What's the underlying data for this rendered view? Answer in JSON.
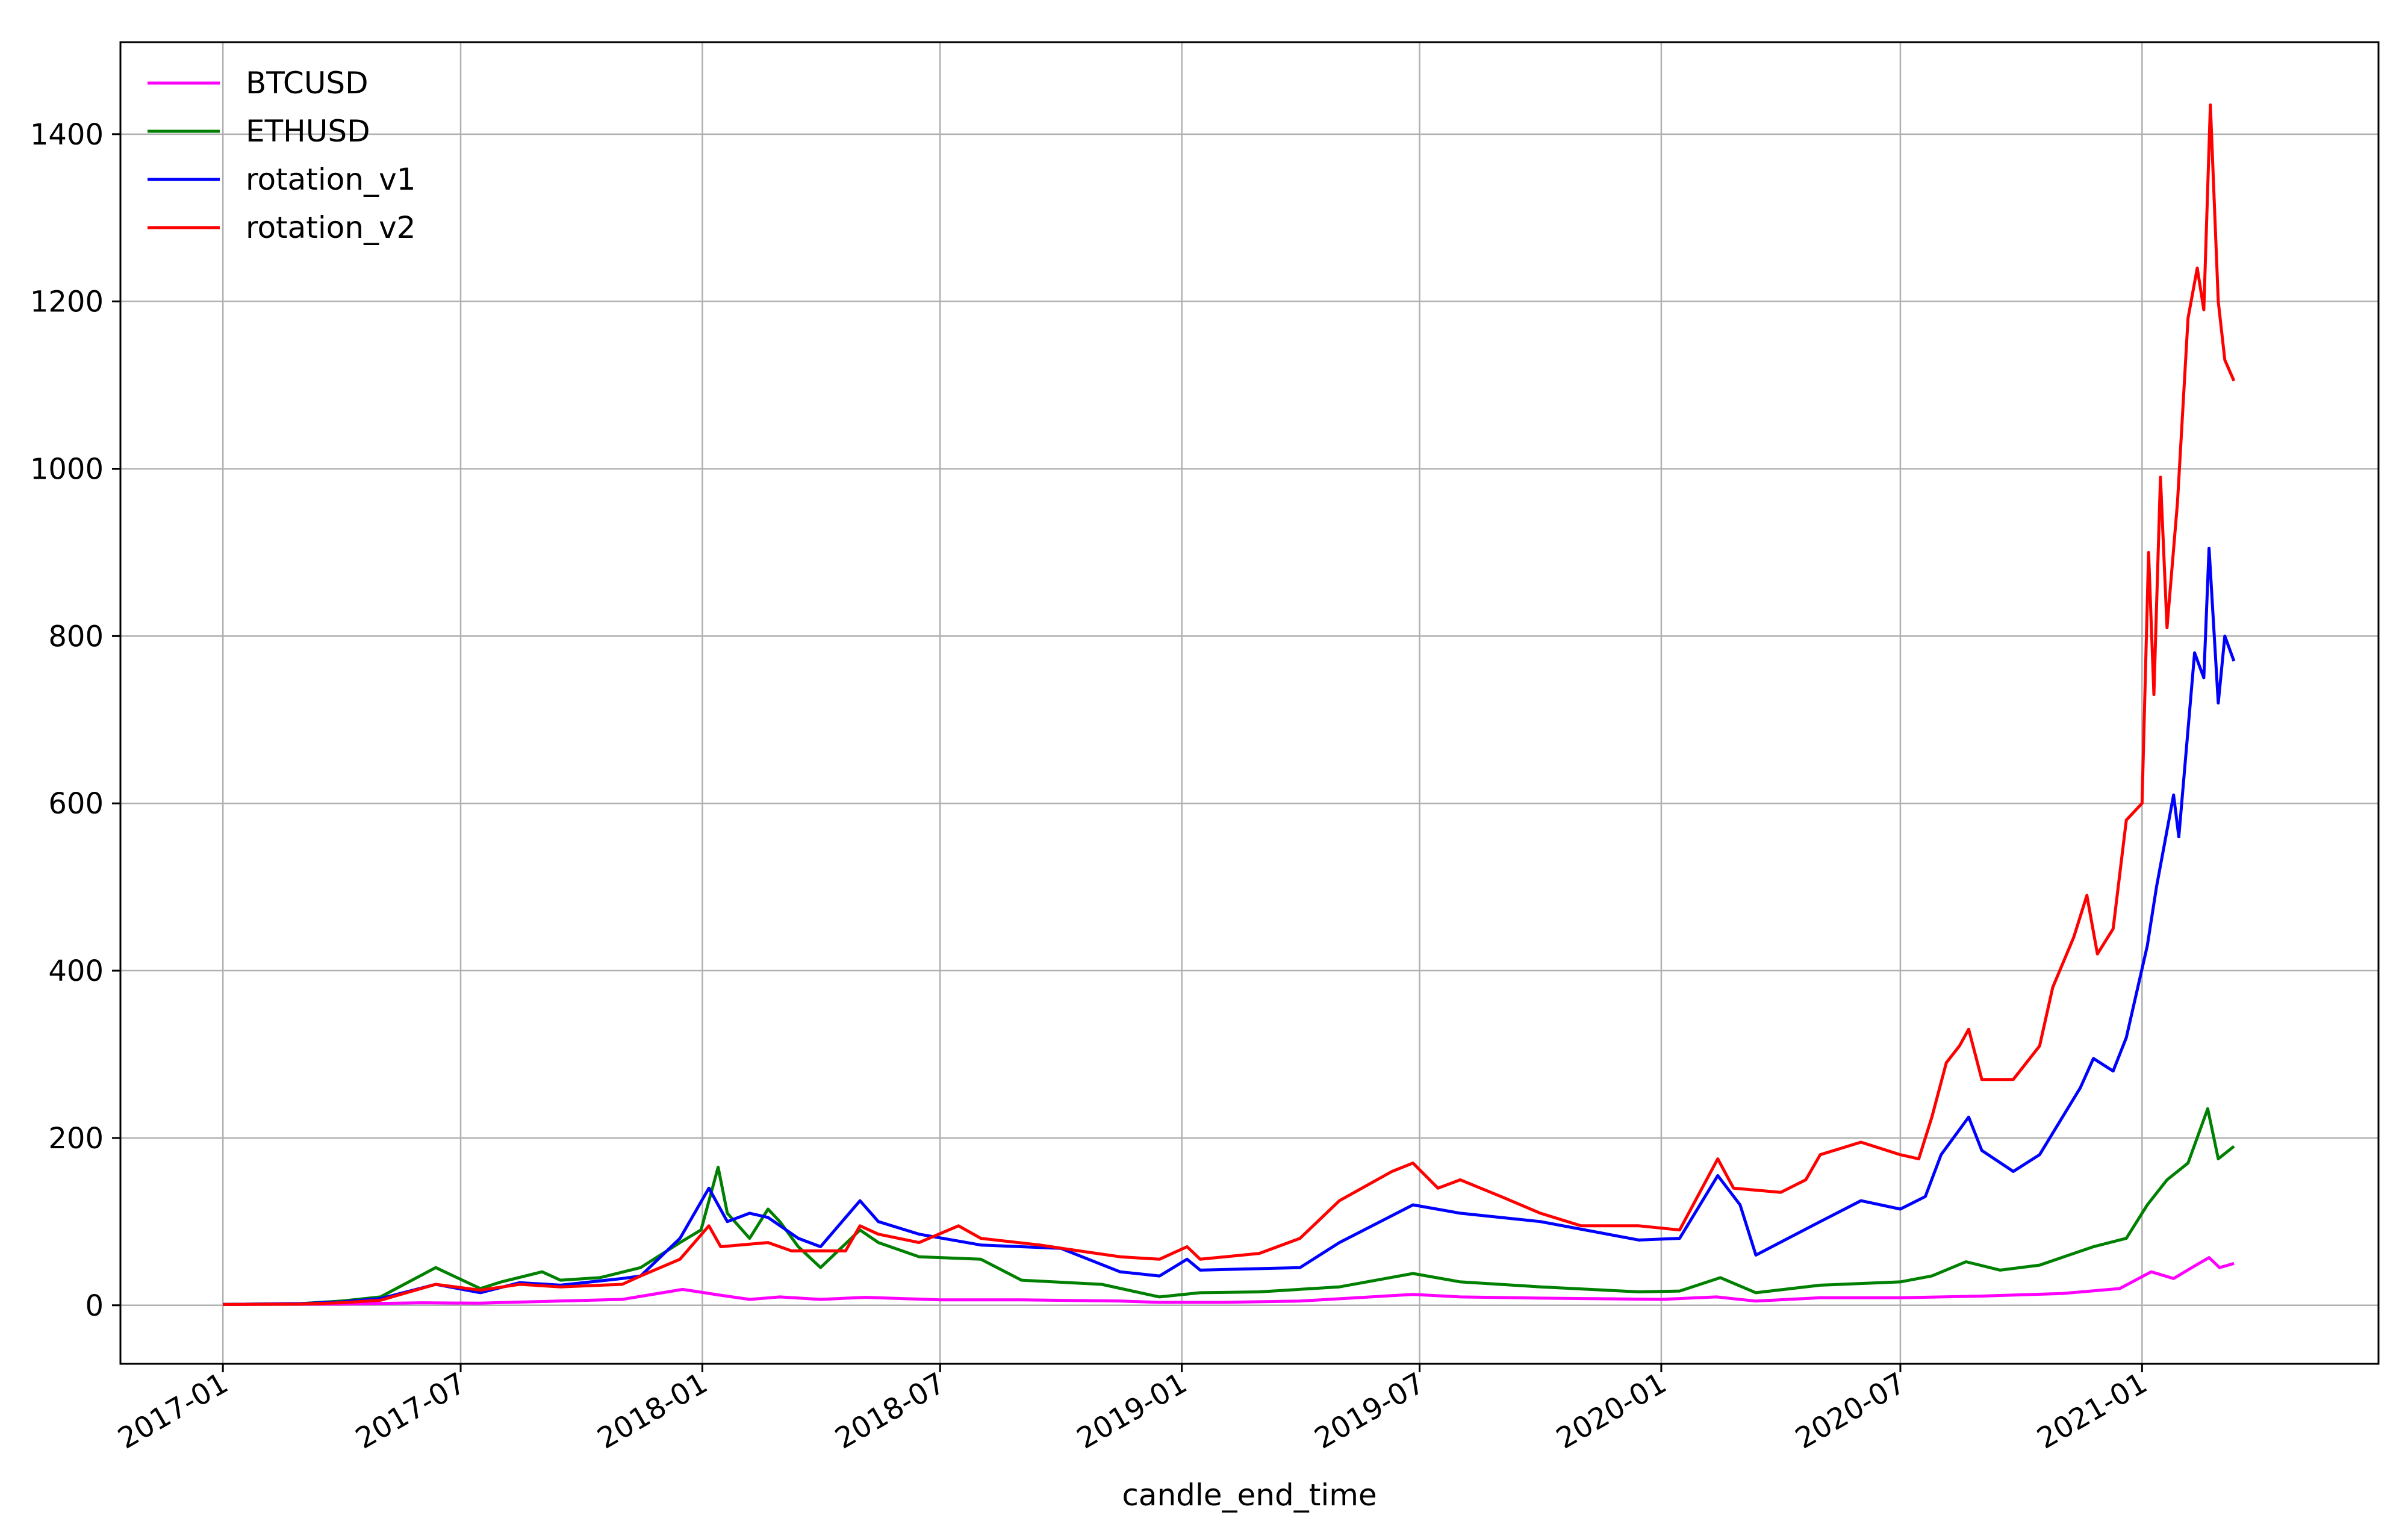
{
  "chart_data": {
    "type": "line",
    "title": "",
    "xlabel": "candle_end_time",
    "ylabel": "",
    "x_ticks": [
      "2017-01",
      "2017-07",
      "2018-01",
      "2018-07",
      "2019-01",
      "2019-07",
      "2020-01",
      "2020-07",
      "2021-01"
    ],
    "y_ticks": [
      0,
      200,
      400,
      600,
      800,
      1000,
      1200,
      1400
    ],
    "xlim": [
      "2016-10-15",
      "2021-06-30"
    ],
    "ylim": [
      -70,
      1510
    ],
    "grid": true,
    "legend": "top-left",
    "colors": {
      "BTCUSD": "#ff00ff",
      "ETHUSD": "#008000",
      "rotation_v1": "#0000ff",
      "rotation_v2": "#ff0000"
    },
    "series": [
      {
        "name": "BTCUSD",
        "points": [
          [
            "2017-01-01",
            1
          ],
          [
            "2017-04-01",
            1.5
          ],
          [
            "2017-06-01",
            3
          ],
          [
            "2017-07-15",
            2.5
          ],
          [
            "2017-09-01",
            4.5
          ],
          [
            "2017-11-01",
            7
          ],
          [
            "2017-12-17",
            19
          ],
          [
            "2018-01-15",
            12
          ],
          [
            "2018-02-06",
            7
          ],
          [
            "2018-03-01",
            10
          ],
          [
            "2018-04-01",
            7
          ],
          [
            "2018-05-05",
            9.5
          ],
          [
            "2018-07-01",
            6.5
          ],
          [
            "2018-09-01",
            6.5
          ],
          [
            "2018-11-15",
            5
          ],
          [
            "2018-12-15",
            3.5
          ],
          [
            "2019-02-01",
            3.5
          ],
          [
            "2019-04-01",
            5
          ],
          [
            "2019-06-26",
            13
          ],
          [
            "2019-08-01",
            10
          ],
          [
            "2019-10-01",
            8.5
          ],
          [
            "2020-01-01",
            7
          ],
          [
            "2020-02-12",
            10
          ],
          [
            "2020-03-13",
            5
          ],
          [
            "2020-05-01",
            9
          ],
          [
            "2020-07-01",
            9
          ],
          [
            "2020-09-01",
            11
          ],
          [
            "2020-11-01",
            14
          ],
          [
            "2020-12-15",
            20
          ],
          [
            "2021-01-08",
            40
          ],
          [
            "2021-01-25",
            32
          ],
          [
            "2021-02-10",
            47
          ],
          [
            "2021-02-21",
            57
          ],
          [
            "2021-03-01",
            45
          ],
          [
            "2021-03-12",
            50
          ]
        ]
      },
      {
        "name": "ETHUSD",
        "points": [
          [
            "2017-01-01",
            1
          ],
          [
            "2017-03-01",
            2
          ],
          [
            "2017-04-01",
            5
          ],
          [
            "2017-05-01",
            10
          ],
          [
            "2017-06-12",
            45
          ],
          [
            "2017-07-16",
            20
          ],
          [
            "2017-08-01",
            28
          ],
          [
            "2017-09-01",
            40
          ],
          [
            "2017-09-15",
            30
          ],
          [
            "2017-10-15",
            33
          ],
          [
            "2017-11-15",
            45
          ],
          [
            "2017-12-15",
            75
          ],
          [
            "2017-12-31",
            90
          ],
          [
            "2018-01-13",
            165
          ],
          [
            "2018-01-20",
            110
          ],
          [
            "2018-02-06",
            80
          ],
          [
            "2018-02-20",
            115
          ],
          [
            "2018-03-01",
            100
          ],
          [
            "2018-03-15",
            70
          ],
          [
            "2018-04-01",
            45
          ],
          [
            "2018-05-01",
            90
          ],
          [
            "2018-05-15",
            75
          ],
          [
            "2018-06-15",
            58
          ],
          [
            "2018-08-01",
            55
          ],
          [
            "2018-09-01",
            30
          ],
          [
            "2018-11-01",
            25
          ],
          [
            "2018-12-15",
            10
          ],
          [
            "2019-01-15",
            15
          ],
          [
            "2019-03-01",
            16
          ],
          [
            "2019-05-01",
            22
          ],
          [
            "2019-06-26",
            38
          ],
          [
            "2019-08-01",
            28
          ],
          [
            "2019-10-01",
            22
          ],
          [
            "2019-12-15",
            16
          ],
          [
            "2020-01-15",
            17
          ],
          [
            "2020-02-15",
            33
          ],
          [
            "2020-03-13",
            15
          ],
          [
            "2020-05-01",
            24
          ],
          [
            "2020-07-01",
            28
          ],
          [
            "2020-07-25",
            35
          ],
          [
            "2020-08-20",
            52
          ],
          [
            "2020-09-15",
            42
          ],
          [
            "2020-10-15",
            48
          ],
          [
            "2020-11-25",
            70
          ],
          [
            "2020-12-20",
            80
          ],
          [
            "2021-01-05",
            120
          ],
          [
            "2021-01-20",
            150
          ],
          [
            "2021-02-05",
            170
          ],
          [
            "2021-02-20",
            235
          ],
          [
            "2021-02-28",
            175
          ],
          [
            "2021-03-12",
            190
          ]
        ]
      },
      {
        "name": "rotation_v1",
        "points": [
          [
            "2017-01-01",
            1
          ],
          [
            "2017-03-01",
            2
          ],
          [
            "2017-04-01",
            4
          ],
          [
            "2017-05-01",
            8
          ],
          [
            "2017-06-12",
            25
          ],
          [
            "2017-07-16",
            15
          ],
          [
            "2017-08-15",
            27
          ],
          [
            "2017-09-15",
            24
          ],
          [
            "2017-11-01",
            32
          ],
          [
            "2017-11-15",
            35
          ],
          [
            "2017-12-15",
            80
          ],
          [
            "2018-01-06",
            140
          ],
          [
            "2018-01-20",
            100
          ],
          [
            "2018-02-06",
            110
          ],
          [
            "2018-02-20",
            105
          ],
          [
            "2018-03-15",
            80
          ],
          [
            "2018-04-01",
            70
          ],
          [
            "2018-05-01",
            125
          ],
          [
            "2018-05-15",
            100
          ],
          [
            "2018-06-15",
            85
          ],
          [
            "2018-08-01",
            72
          ],
          [
            "2018-10-01",
            68
          ],
          [
            "2018-11-15",
            40
          ],
          [
            "2018-12-15",
            35
          ],
          [
            "2019-01-05",
            55
          ],
          [
            "2019-01-15",
            42
          ],
          [
            "2019-04-01",
            45
          ],
          [
            "2019-05-01",
            75
          ],
          [
            "2019-06-26",
            120
          ],
          [
            "2019-08-01",
            110
          ],
          [
            "2019-10-01",
            100
          ],
          [
            "2019-12-15",
            78
          ],
          [
            "2020-01-15",
            80
          ],
          [
            "2020-02-13",
            155
          ],
          [
            "2020-03-01",
            120
          ],
          [
            "2020-03-13",
            60
          ],
          [
            "2020-05-01",
            100
          ],
          [
            "2020-06-01",
            125
          ],
          [
            "2020-07-01",
            115
          ],
          [
            "2020-07-20",
            130
          ],
          [
            "2020-08-01",
            180
          ],
          [
            "2020-08-22",
            225
          ],
          [
            "2020-09-01",
            185
          ],
          [
            "2020-09-25",
            160
          ],
          [
            "2020-10-15",
            180
          ],
          [
            "2020-11-15",
            260
          ],
          [
            "2020-11-25",
            295
          ],
          [
            "2020-12-10",
            280
          ],
          [
            "2020-12-20",
            320
          ],
          [
            "2021-01-05",
            430
          ],
          [
            "2021-01-12",
            500
          ],
          [
            "2021-01-25",
            610
          ],
          [
            "2021-01-29",
            560
          ],
          [
            "2021-02-10",
            780
          ],
          [
            "2021-02-17",
            750
          ],
          [
            "2021-02-21",
            905
          ],
          [
            "2021-02-28",
            720
          ],
          [
            "2021-03-05",
            800
          ],
          [
            "2021-03-12",
            770
          ]
        ]
      },
      {
        "name": "rotation_v2",
        "points": [
          [
            "2017-01-01",
            1
          ],
          [
            "2017-03-01",
            1.5
          ],
          [
            "2017-04-01",
            3
          ],
          [
            "2017-05-01",
            6
          ],
          [
            "2017-06-12",
            25
          ],
          [
            "2017-07-16",
            18
          ],
          [
            "2017-08-15",
            25
          ],
          [
            "2017-09-15",
            22
          ],
          [
            "2017-11-01",
            25
          ],
          [
            "2017-11-15",
            35
          ],
          [
            "2017-12-15",
            55
          ],
          [
            "2018-01-06",
            95
          ],
          [
            "2018-01-15",
            70
          ],
          [
            "2018-02-20",
            75
          ],
          [
            "2018-03-10",
            65
          ],
          [
            "2018-04-20",
            65
          ],
          [
            "2018-05-01",
            95
          ],
          [
            "2018-05-15",
            85
          ],
          [
            "2018-06-15",
            75
          ],
          [
            "2018-07-15",
            95
          ],
          [
            "2018-08-01",
            80
          ],
          [
            "2018-09-15",
            72
          ],
          [
            "2018-10-15",
            65
          ],
          [
            "2018-11-15",
            58
          ],
          [
            "2018-12-15",
            55
          ],
          [
            "2019-01-05",
            70
          ],
          [
            "2019-01-15",
            55
          ],
          [
            "2019-03-01",
            62
          ],
          [
            "2019-04-01",
            80
          ],
          [
            "2019-05-01",
            125
          ],
          [
            "2019-06-10",
            160
          ],
          [
            "2019-06-26",
            170
          ],
          [
            "2019-07-15",
            140
          ],
          [
            "2019-08-01",
            150
          ],
          [
            "2019-09-01",
            130
          ],
          [
            "2019-10-01",
            110
          ],
          [
            "2019-11-01",
            95
          ],
          [
            "2019-12-15",
            95
          ],
          [
            "2020-01-15",
            90
          ],
          [
            "2020-02-13",
            175
          ],
          [
            "2020-02-25",
            140
          ],
          [
            "2020-04-01",
            135
          ],
          [
            "2020-04-20",
            150
          ],
          [
            "2020-05-01",
            180
          ],
          [
            "2020-06-01",
            195
          ],
          [
            "2020-07-01",
            180
          ],
          [
            "2020-07-15",
            175
          ],
          [
            "2020-07-25",
            225
          ],
          [
            "2020-08-05",
            290
          ],
          [
            "2020-08-15",
            310
          ],
          [
            "2020-08-22",
            330
          ],
          [
            "2020-09-01",
            270
          ],
          [
            "2020-09-25",
            270
          ],
          [
            "2020-10-15",
            310
          ],
          [
            "2020-10-25",
            380
          ],
          [
            "2020-11-10",
            440
          ],
          [
            "2020-11-20",
            490
          ],
          [
            "2020-11-28",
            420
          ],
          [
            "2020-12-10",
            450
          ],
          [
            "2020-12-20",
            580
          ],
          [
            "2021-01-01",
            600
          ],
          [
            "2021-01-06",
            900
          ],
          [
            "2021-01-10",
            730
          ],
          [
            "2021-01-15",
            990
          ],
          [
            "2021-01-20",
            810
          ],
          [
            "2021-01-28",
            960
          ],
          [
            "2021-02-05",
            1180
          ],
          [
            "2021-02-12",
            1240
          ],
          [
            "2021-02-17",
            1190
          ],
          [
            "2021-02-22",
            1435
          ],
          [
            "2021-02-28",
            1200
          ],
          [
            "2021-03-05",
            1130
          ],
          [
            "2021-03-12",
            1105
          ]
        ]
      }
    ]
  }
}
